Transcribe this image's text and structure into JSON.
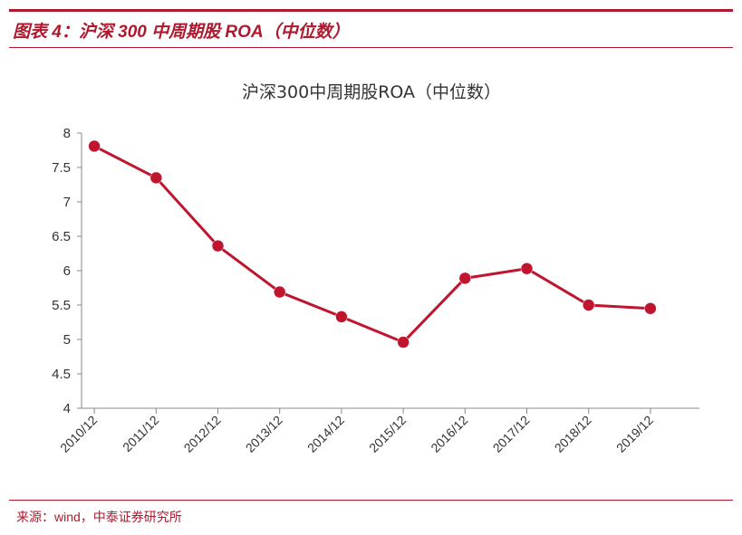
{
  "figure": {
    "title": "图表 4：沪深 300 中周期股 ROA（中位数）",
    "source": "来源：wind，中泰证券研究所",
    "accent_color": "#b0182e"
  },
  "chart_data": {
    "type": "line",
    "title": "沪深300中周期股ROA（中位数）",
    "xlabel": "",
    "ylabel": "",
    "categories": [
      "2010/12",
      "2011/12",
      "2012/12",
      "2013/12",
      "2014/12",
      "2015/12",
      "2016/12",
      "2017/12",
      "2018/12",
      "2019/12"
    ],
    "series": [
      {
        "values": [
          7.81,
          7.35,
          6.36,
          5.69,
          5.33,
          4.96,
          5.89,
          6.03,
          5.5,
          5.45
        ],
        "color": "#c0152f"
      }
    ],
    "ylim": [
      4,
      8
    ],
    "yticks": [
      "4",
      "4.5",
      "5",
      "5.5",
      "6",
      "6.5",
      "7",
      "7.5",
      "8"
    ],
    "grid": false,
    "legend": "none"
  }
}
